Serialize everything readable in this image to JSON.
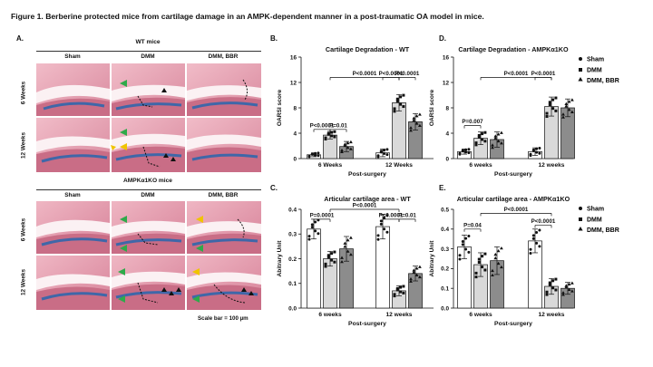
{
  "figure_title": "Figure 1. Berberine protected mice from cartilage damage in an AMPK-dependent manner in a post-traumatic OA model in mice.",
  "panel_a": {
    "label": "A.",
    "group_top": "WT mice",
    "group_bottom": "AMPKα1KO mice",
    "columns": [
      "Sham",
      "DMM",
      "DMM, BBR"
    ],
    "rows": [
      "6 Weeks",
      "12 Weeks"
    ],
    "scale_bar": "Scale bar = 100 µm"
  },
  "legend": {
    "items": [
      "Sham",
      "DMM",
      "DMM, BBR"
    ]
  },
  "chart_data": [
    {
      "panel": "B.",
      "type": "bar",
      "title": "Cartilage Degradation - WT",
      "ylabel": "OARSI score",
      "xlabel": "Post-surgery",
      "ylim": [
        0,
        16
      ],
      "yticks": [
        0,
        4,
        8,
        12,
        16
      ],
      "categories": [
        "6 Weeks",
        "12 Weeks"
      ],
      "series": [
        {
          "name": "Sham",
          "values": [
            0.6,
            0.9
          ],
          "sd": [
            0.3,
            0.6
          ]
        },
        {
          "name": "DMM",
          "values": [
            3.7,
            8.8
          ],
          "sd": [
            0.6,
            1.3
          ]
        },
        {
          "name": "DMM, BBR",
          "values": [
            1.9,
            5.8
          ],
          "sd": [
            0.8,
            1.3
          ]
        }
      ],
      "annotations": [
        "P<0.0001",
        "P=0.01",
        "P<0.0001",
        "P<0.0001",
        "P<0.0001"
      ]
    },
    {
      "panel": "D.",
      "type": "bar",
      "title": "Cartilage Degradation - AMPKα1KO",
      "ylabel": "OARSI score",
      "xlabel": "Post-surgery",
      "ylim": [
        0,
        16
      ],
      "yticks": [
        0,
        4,
        8,
        12,
        16
      ],
      "categories": [
        "6 weeks",
        "12 weeks"
      ],
      "series": [
        {
          "name": "Sham",
          "values": [
            1.1,
            1.1
          ],
          "sd": [
            0.4,
            0.6
          ]
        },
        {
          "name": "DMM",
          "values": [
            3.2,
            8.2
          ],
          "sd": [
            1.0,
            1.5
          ]
        },
        {
          "name": "DMM, BBR",
          "values": [
            3.0,
            8.0
          ],
          "sd": [
            1.2,
            1.4
          ]
        }
      ],
      "annotations": [
        "P=0.007",
        "P<0.0001",
        "P<0.0001"
      ]
    },
    {
      "panel": "C.",
      "type": "bar",
      "title": "Articular cartilage area - WT",
      "ylabel": "Abitrary Unit",
      "xlabel": "Post-surgery",
      "ylim": [
        0,
        0.4
      ],
      "yticks": [
        0.0,
        0.1,
        0.2,
        0.3,
        0.4
      ],
      "categories": [
        "6 weeks",
        "12 weeks"
      ],
      "series": [
        {
          "name": "Sham",
          "values": [
            0.32,
            0.33
          ],
          "sd": [
            0.04,
            0.05
          ]
        },
        {
          "name": "DMM",
          "values": [
            0.2,
            0.07
          ],
          "sd": [
            0.03,
            0.02
          ]
        },
        {
          "name": "DMM, BBR",
          "values": [
            0.24,
            0.14
          ],
          "sd": [
            0.05,
            0.03
          ]
        }
      ],
      "annotations": [
        "P=0.0001",
        "P<0.0001",
        "P<0.0001",
        "P=0.01"
      ]
    },
    {
      "panel": "E.",
      "type": "bar",
      "title": "Articular cartilage area - AMPKα1KO",
      "ylabel": "Abitrary Unit",
      "xlabel": "Post-surgery",
      "ylim": [
        0,
        0.5
      ],
      "yticks": [
        0.0,
        0.1,
        0.2,
        0.3,
        0.4,
        0.5
      ],
      "categories": [
        "6 weeks",
        "12 weeks"
      ],
      "series": [
        {
          "name": "Sham",
          "values": [
            0.31,
            0.34
          ],
          "sd": [
            0.06,
            0.06
          ]
        },
        {
          "name": "DMM",
          "values": [
            0.22,
            0.11
          ],
          "sd": [
            0.06,
            0.04
          ]
        },
        {
          "name": "DMM, BBR",
          "values": [
            0.24,
            0.1
          ],
          "sd": [
            0.07,
            0.03
          ]
        }
      ],
      "annotations": [
        "P=0.04",
        "P<0.0001",
        "P<0.0001"
      ]
    }
  ],
  "colors": {
    "sham": "#ffffff",
    "dmm": "#d9d9d9",
    "bbr": "#8c8c8c",
    "stain_pink": "#e8a4b4",
    "stain_blue": "#3f67a8"
  }
}
